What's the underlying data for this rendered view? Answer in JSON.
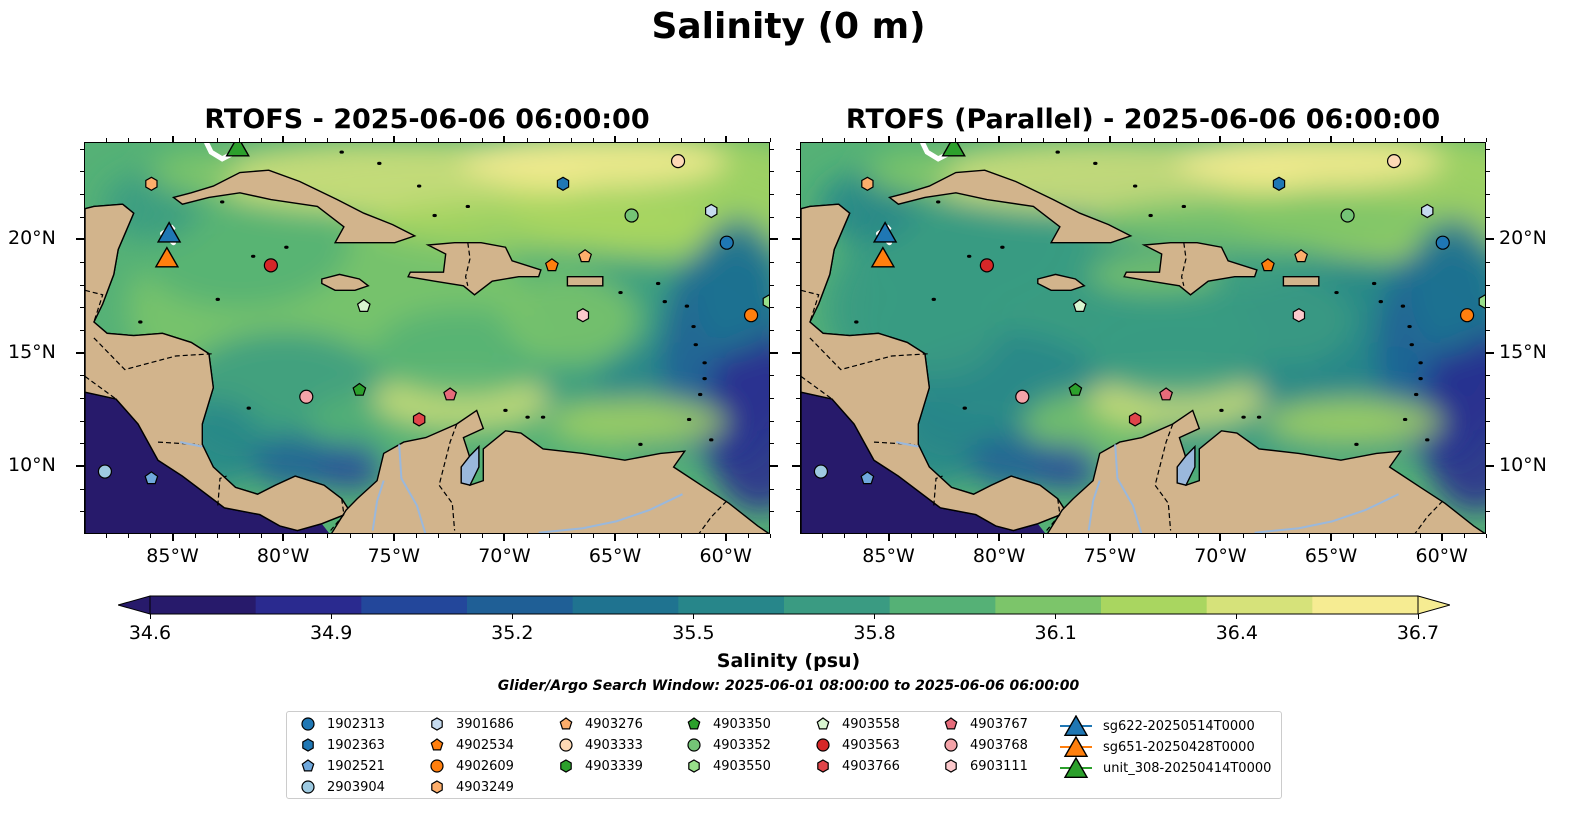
{
  "suptitle": "Salinity (0 m)",
  "panels": [
    {
      "title": "RTOFS - 2025-06-06 06:00:00",
      "variant": "base"
    },
    {
      "title": "RTOFS (Parallel) - 2025-06-06 06:00:00",
      "variant": "parallel"
    }
  ],
  "axes": {
    "lon_range": [
      -89.0,
      -58.0
    ],
    "lat_range": [
      7.0,
      24.3
    ],
    "lon_ticks": [
      {
        "value": -85,
        "label": "85°W"
      },
      {
        "value": -80,
        "label": "80°W"
      },
      {
        "value": -75,
        "label": "75°W"
      },
      {
        "value": -70,
        "label": "70°W"
      },
      {
        "value": -65,
        "label": "65°W"
      },
      {
        "value": -60,
        "label": "60°W"
      }
    ],
    "lat_ticks": [
      {
        "value": 20,
        "label": "20°N"
      },
      {
        "value": 15,
        "label": "15°N"
      },
      {
        "value": 10,
        "label": "10°N"
      }
    ]
  },
  "colorbar": {
    "label": "Salinity (psu)",
    "min": 34.6,
    "max": 36.7,
    "ticks": [
      "34.6",
      "34.9",
      "35.2",
      "35.5",
      "35.8",
      "36.1",
      "36.4",
      "36.7"
    ],
    "colors": [
      "#271a6b",
      "#2a2a8f",
      "#23479b",
      "#1f5f96",
      "#1f7390",
      "#27868a",
      "#3a9b82",
      "#55b176",
      "#7cc56a",
      "#a9d660",
      "#d6e27a",
      "#f6ec92"
    ],
    "extend": "both",
    "land_color": "#d2b48c",
    "river_color": "#9ab8dc"
  },
  "search_window": "Glider/Argo Search Window: 2025-06-01 08:00:00 to 2025-06-06 06:00:00",
  "floats": [
    {
      "id": "1902313",
      "marker": "circle",
      "color": "#1f77b4",
      "lon": -60.0,
      "lat": 19.9
    },
    {
      "id": "1902363",
      "marker": "hexagon",
      "color": "#1f77b4",
      "lon": -67.4,
      "lat": 22.5
    },
    {
      "id": "1902521",
      "marker": "pentagon",
      "color": "#6fa8dc",
      "lon": -86.0,
      "lat": 9.5
    },
    {
      "id": "2903904",
      "marker": "circle",
      "color": "#9ecae1",
      "lon": -88.1,
      "lat": 9.8
    },
    {
      "id": "3901686",
      "marker": "hexagon",
      "color": "#c6dbef",
      "lon": -60.7,
      "lat": 21.3
    },
    {
      "id": "4902534",
      "marker": "pentagon",
      "color": "#ff7f0e",
      "lon": -67.9,
      "lat": 18.9
    },
    {
      "id": "4902609",
      "marker": "circle",
      "color": "#ff7f0e",
      "lon": -58.9,
      "lat": 16.7
    },
    {
      "id": "4903249",
      "marker": "hexagon",
      "color": "#fdae6b",
      "lon": -86.0,
      "lat": 22.5
    },
    {
      "id": "4903276",
      "marker": "pentagon",
      "color": "#fdae6b",
      "lon": -66.4,
      "lat": 19.3
    },
    {
      "id": "4903333",
      "marker": "circle",
      "color": "#fdd9b5",
      "lon": -62.2,
      "lat": 23.5
    },
    {
      "id": "4903339",
      "marker": "hexagon",
      "color": "#2ca02c",
      "lon": -84.0,
      "lat": 6.5
    },
    {
      "id": "4903350",
      "marker": "pentagon",
      "color": "#2ca02c",
      "lon": -76.6,
      "lat": 13.4
    },
    {
      "id": "4903352",
      "marker": "circle",
      "color": "#74c476",
      "lon": -64.3,
      "lat": 21.1
    },
    {
      "id": "4903550",
      "marker": "hexagon",
      "color": "#98df8a",
      "lon": -58.1,
      "lat": 17.3
    },
    {
      "id": "4903558",
      "marker": "pentagon",
      "color": "#d9f5d0",
      "lon": -76.4,
      "lat": 17.1
    },
    {
      "id": "4903563",
      "marker": "circle",
      "color": "#d62728",
      "lon": -80.6,
      "lat": 18.9
    },
    {
      "id": "4903766",
      "marker": "hexagon",
      "color": "#e0454a",
      "lon": -73.9,
      "lat": 12.1
    },
    {
      "id": "4903767",
      "marker": "pentagon",
      "color": "#e66b7a",
      "lon": -72.5,
      "lat": 13.2
    },
    {
      "id": "4903768",
      "marker": "circle",
      "color": "#f4a3a8",
      "lon": -79.0,
      "lat": 13.1
    },
    {
      "id": "6903111",
      "marker": "hexagon",
      "color": "#fcc9cc",
      "lon": -66.5,
      "lat": 16.7
    }
  ],
  "gliders": [
    {
      "id": "sg622-20250514T0000",
      "color": "#1f77b4",
      "lon": -85.2,
      "lat": 20.3
    },
    {
      "id": "sg651-20250428T0000",
      "color": "#ff7f0e",
      "lon": -85.3,
      "lat": 19.2
    },
    {
      "id": "unit_308-20250414T0000",
      "color": "#2ca02c",
      "lon": -82.1,
      "lat": 24.1
    }
  ]
}
